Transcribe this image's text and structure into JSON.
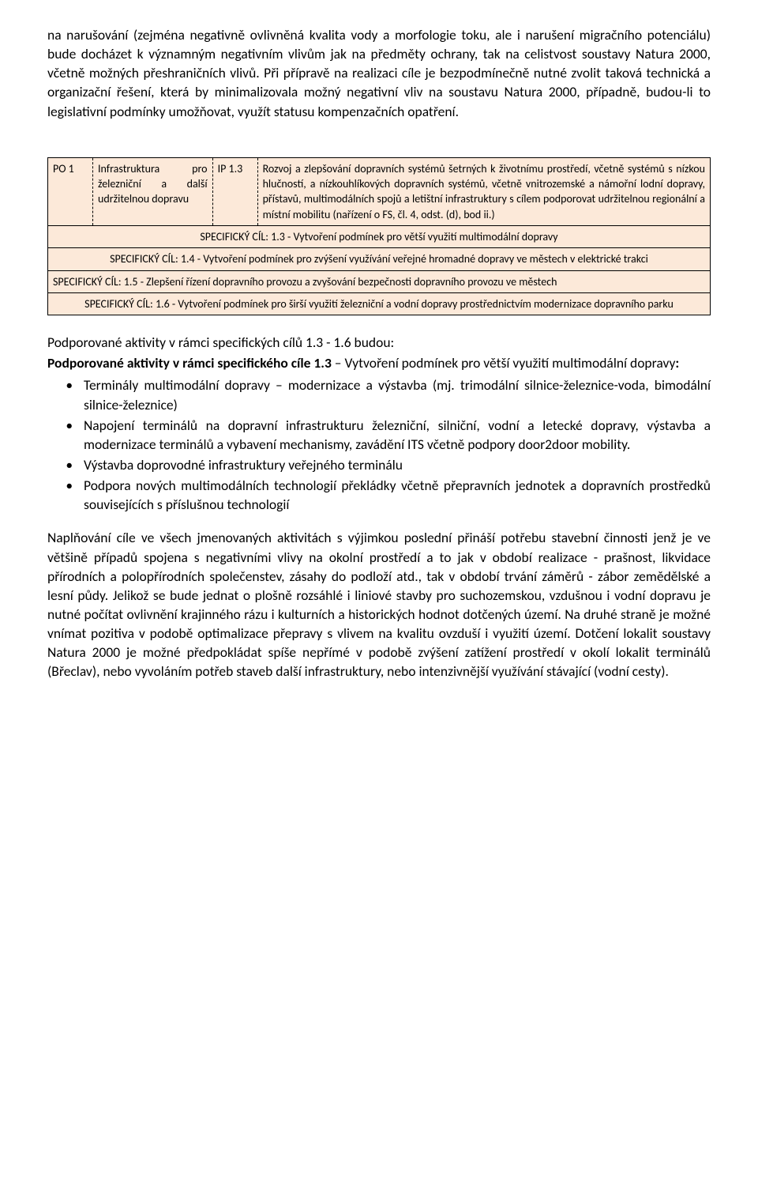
{
  "intro_para": "na narušování (zejména negativně ovlivněná kvalita vody a morfologie toku, ale i narušení migračního potenciálu) bude docházet k významným negativním vlivům jak na předměty ochrany, tak na celistvost soustavy Natura 2000, včetně možných přeshraničních vlivů. Při přípravě na realizaci cíle je bezpodmínečně nutné zvolit taková technická a organizační řešení, která by minimalizovala možný negativní vliv na soustavu Natura 2000, případně, budou-li to legislativní podmínky umožňovat, využít statusu kompenzačních opatření.",
  "table": {
    "po_label": "PO 1",
    "po_text": "Infrastruktura pro železniční a další udržitelnou dopravu",
    "ip_label": "IP 1.3",
    "ip_text": "Rozvoj a zlepšování dopravních systémů šetrných k životnímu prostředí, včetně systémů s nízkou hlučností, a nízkouhlíkových dopravních systémů, včetně vnitrozemské a námořní lodní dopravy, přístavů, multimodálních spojů a letištní infrastruktury s cílem podporovat udržitelnou regionální a místní mobilitu (nařízení o FS, čl. 4, odst. (d), bod ii.)",
    "sc13": "SPECIFICKÝ CÍL: 1.3 - Vytvoření podmínek pro větší využití multimodální dopravy",
    "sc14": "SPECIFICKÝ CÍL: 1.4 - Vytvoření podmínek pro zvýšení využívání veřejné hromadné dopravy ve městech v elektrické trakci",
    "sc15": "SPECIFICKÝ CÍL: 1.5 - Zlepšení řízení dopravního provozu a zvyšování bezpečnosti dopravního provozu ve městech",
    "sc16": "SPECIFICKÝ CÍL: 1.6 - Vytvoření podmínek pro širší využití železniční a vodní dopravy prostřednictvím modernizace dopravního parku"
  },
  "heading1": "Podporované aktivity v rámci specifických cílů 1.3 - 1.6 budou:",
  "subheading_bold": "Podporované aktivity v rámci specifického cíle 1.3",
  "subheading_rest": " – Vytvoření podmínek pro větší využití multimodální dopravy",
  "subheading_colon": ":",
  "bullets": [
    "Terminály multimodální dopravy – modernizace a výstavba (mj. trimodální silnice-železnice-voda, bimodální silnice-železnice)",
    "Napojení terminálů na dopravní infrastrukturu železniční, silniční, vodní a letecké dopravy, výstavba a modernizace terminálů a vybavení mechanismy, zavádění ITS včetně podpory door2door mobility.",
    "Výstavba doprovodné infrastruktury veřejného terminálu",
    "Podpora nových multimodálních technologií překládky včetně přepravních jednotek a dopravních prostředků souvisejících s příslušnou technologií"
  ],
  "closing_para": "Naplňování cíle ve všech jmenovaných aktivitách s výjimkou poslední přináší potřebu stavební činnosti jenž je ve většině případů spojena s negativními vlivy na okolní prostředí a to jak v období realizace - prašnost, likvidace přírodních a polopřírodních společenstev, zásahy do podloží atd., tak v období trvání záměrů - zábor zemědělské a lesní půdy. Jelikož se bude jednat o plošně rozsáhlé i liniové stavby pro suchozemskou, vzdušnou i vodní dopravu je nutné počítat ovlivnění krajinného rázu i kulturních a historických hodnot dotčených území. Na druhé straně je možné vnímat pozitiva v podobě optimalizace přepravy s vlivem na kvalitu ovzduší i využití území. Dotčení lokalit soustavy Natura 2000 je možné předpokládat spíše nepřímé v podobě zvýšení zatížení prostředí v okolí lokalit terminálů (Břeclav), nebo vyvoláním potřeb staveb další infrastruktury, nebo intenzivnější využívání stávající (vodní cesty)."
}
